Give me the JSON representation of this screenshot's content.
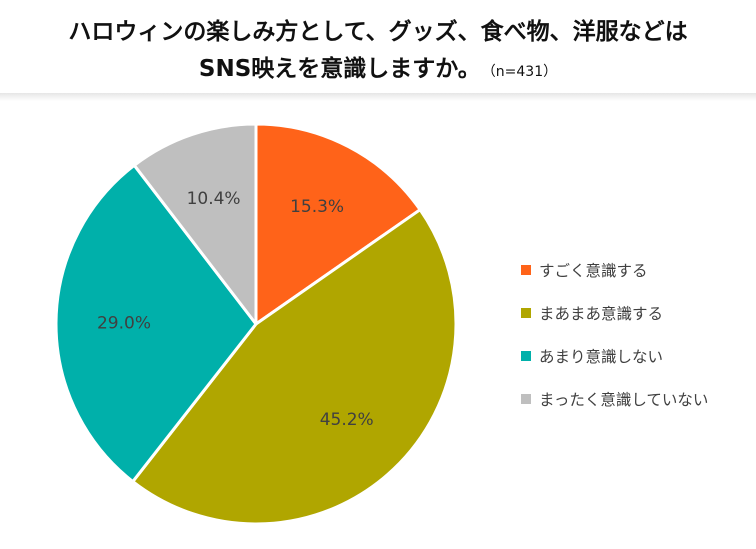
{
  "title": {
    "line1": "ハロウィンの楽しみ方として、グッズ、食べ物、洋服などは",
    "line2": "SNS映えを意識しますか。",
    "n_label": "（n=431）"
  },
  "chart_data": {
    "type": "pie",
    "title": "ハロウィンの楽しみ方として、グッズ、食べ物、洋服などはSNS映えを意識しますか。（n=431）",
    "legend_position": "right",
    "slices": [
      {
        "label": "すごく意識する",
        "value": 15.3,
        "display": "15.3%",
        "color": "#ff6319"
      },
      {
        "label": "まあまあ意識する",
        "value": 45.2,
        "display": "45.2%",
        "color": "#b0a600"
      },
      {
        "label": "あまり意識しない",
        "value": 29.0,
        "display": "29.0%",
        "color": "#00b0aa"
      },
      {
        "label": "まったく意識していない",
        "value": 10.4,
        "display": "10.4%",
        "color": "#bfbfbf"
      }
    ]
  }
}
